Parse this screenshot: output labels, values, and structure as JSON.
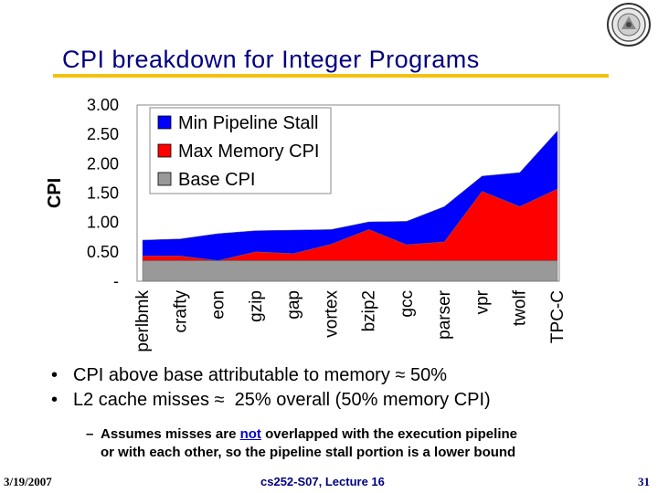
{
  "slide": {
    "title": "CPI breakdown for Integer Programs",
    "bullets": [
      {
        "text_before": "CPI above base attributable to memory ",
        "symbol": "≈",
        "text_after": " 50%"
      },
      {
        "text_before": "L2 cache misses ",
        "symbol": "≈",
        "text_after": "  25% overall (50% memory CPI)"
      }
    ],
    "sub_bullet": {
      "dash": "–",
      "line1_before": "Assumes misses are ",
      "line1_emph": "not",
      "line1_after": " overlapped with the execution pipeline",
      "line2": "or with each other, so the pipeline stall portion is a lower bound"
    },
    "footer": {
      "date": "3/19/2007",
      "course": "cs252-S07, Lecture 16",
      "page": "31"
    }
  },
  "chart_data": {
    "type": "area",
    "stacked": true,
    "ylabel": "CPI",
    "xlabel": "",
    "ylim": [
      0,
      3.0
    ],
    "y_ticks": [
      "-",
      "0.50",
      "1.00",
      "1.50",
      "2.00",
      "2.50",
      "3.00"
    ],
    "y_tick_values": [
      0,
      0.5,
      1.0,
      1.5,
      2.0,
      2.5,
      3.0
    ],
    "categories": [
      "perlbmk",
      "crafty",
      "eon",
      "gzip",
      "gap",
      "vortex",
      "bzip2",
      "gcc",
      "parser",
      "vpr",
      "twolf",
      "TPC-C"
    ],
    "series": [
      {
        "name": "Base CPI",
        "color": "#999999",
        "values": [
          0.35,
          0.35,
          0.35,
          0.35,
          0.35,
          0.35,
          0.35,
          0.35,
          0.35,
          0.35,
          0.35,
          0.35
        ]
      },
      {
        "name": "Max Memory CPI",
        "color": "#ff0000",
        "values": [
          0.08,
          0.08,
          0.0,
          0.15,
          0.12,
          0.28,
          0.53,
          0.27,
          0.32,
          1.18,
          0.92,
          1.22
        ]
      },
      {
        "name": "Min Pipeline Stall",
        "color": "#0000ff",
        "values": [
          0.27,
          0.29,
          0.46,
          0.36,
          0.4,
          0.25,
          0.13,
          0.4,
          0.6,
          0.26,
          0.58,
          0.99
        ]
      }
    ],
    "legend_order": [
      "Min Pipeline Stall",
      "Max Memory CPI",
      "Base CPI"
    ],
    "legend_placement": "top-left",
    "grid": false
  }
}
